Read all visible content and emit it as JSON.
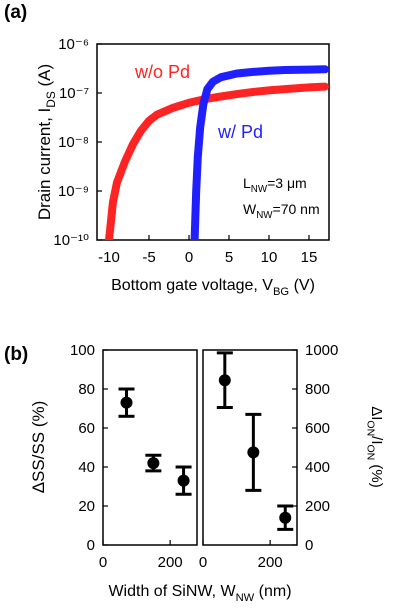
{
  "chart_data": [
    {
      "type": "line",
      "panel_label": "(a)",
      "log_y": true,
      "xlabel": [
        "Bottom gate voltage, V",
        "BG",
        " (V)"
      ],
      "ylabel": [
        "Drain current, I",
        "DS",
        " (A)"
      ],
      "xlim": [
        -11.5,
        17.5
      ],
      "xticks": [
        -10,
        -5,
        0,
        5,
        10,
        15
      ],
      "ylim": [
        1e-10,
        1e-06
      ],
      "yticks": [
        {
          "value": 1e-10,
          "label": "10⁻¹⁰"
        },
        {
          "value": 1e-09,
          "label": "10⁻⁹"
        },
        {
          "value": 1e-08,
          "label": "10⁻⁸"
        },
        {
          "value": 1e-07,
          "label": "10⁻⁷"
        },
        {
          "value": 1e-06,
          "label": "10⁻⁶"
        }
      ],
      "series": [
        {
          "name": "w/o Pd",
          "color": "#ff2424",
          "x": [
            -10,
            -9.5,
            -9,
            -8,
            -7,
            -6,
            -5,
            -4,
            -2,
            0,
            2,
            4,
            6,
            8,
            10,
            12,
            15,
            17
          ],
          "values": [
            1e-10,
            6e-10,
            1.5e-09,
            4e-09,
            9e-09,
            1.7e-08,
            2.7e-08,
            3.6e-08,
            5e-08,
            6.3e-08,
            7.5e-08,
            8.5e-08,
            9.5e-08,
            1.05e-07,
            1.13e-07,
            1.2e-07,
            1.3e-07,
            1.35e-07
          ]
        },
        {
          "name": "w/ Pd",
          "color": "#1f1fff",
          "x": [
            0.7,
            0.9,
            1.1,
            1.4,
            1.8,
            2.3,
            3,
            4,
            6,
            8,
            10,
            12,
            15,
            17
          ],
          "values": [
            1e-10,
            1e-09,
            5e-09,
            2e-08,
            6e-08,
            1.2e-07,
            1.7e-07,
            2.1e-07,
            2.5e-07,
            2.7e-07,
            2.85e-07,
            2.95e-07,
            3e-07,
            3.05e-07
          ]
        }
      ],
      "annotations": [
        [
          "L",
          "NW",
          "=3 μm"
        ],
        [
          "W",
          "NW",
          "=70 nm"
        ]
      ]
    },
    {
      "type": "errorbar",
      "panel_label": "(b)",
      "xlabel": [
        "Width of SiNW, W",
        "NW",
        " (nm)"
      ],
      "ylabel": [
        "ΔSS/SS (%)"
      ],
      "xlim": [
        0,
        280
      ],
      "xticks": [
        0,
        200
      ],
      "ylim": [
        0,
        100
      ],
      "yticks": [
        0,
        20,
        40,
        60,
        80,
        100
      ],
      "series": [
        {
          "color": "#000000",
          "x": [
            70,
            150,
            240
          ],
          "values": [
            73,
            42,
            33
          ],
          "errors": [
            7,
            4,
            7
          ]
        }
      ]
    },
    {
      "type": "errorbar",
      "y2label": [
        "ΔI",
        "ON",
        "/I",
        "ON",
        " (%)"
      ],
      "xlim": [
        0,
        280
      ],
      "xticks": [
        0,
        200
      ],
      "y2lim": [
        0,
        1000
      ],
      "y2ticks": [
        0,
        200,
        400,
        600,
        800,
        1000
      ],
      "series": [
        {
          "color": "#000000",
          "axis": "y2",
          "x": [
            65,
            150,
            245
          ],
          "values": [
            845,
            475,
            140
          ],
          "errors": [
            140,
            195,
            60
          ]
        }
      ]
    }
  ]
}
